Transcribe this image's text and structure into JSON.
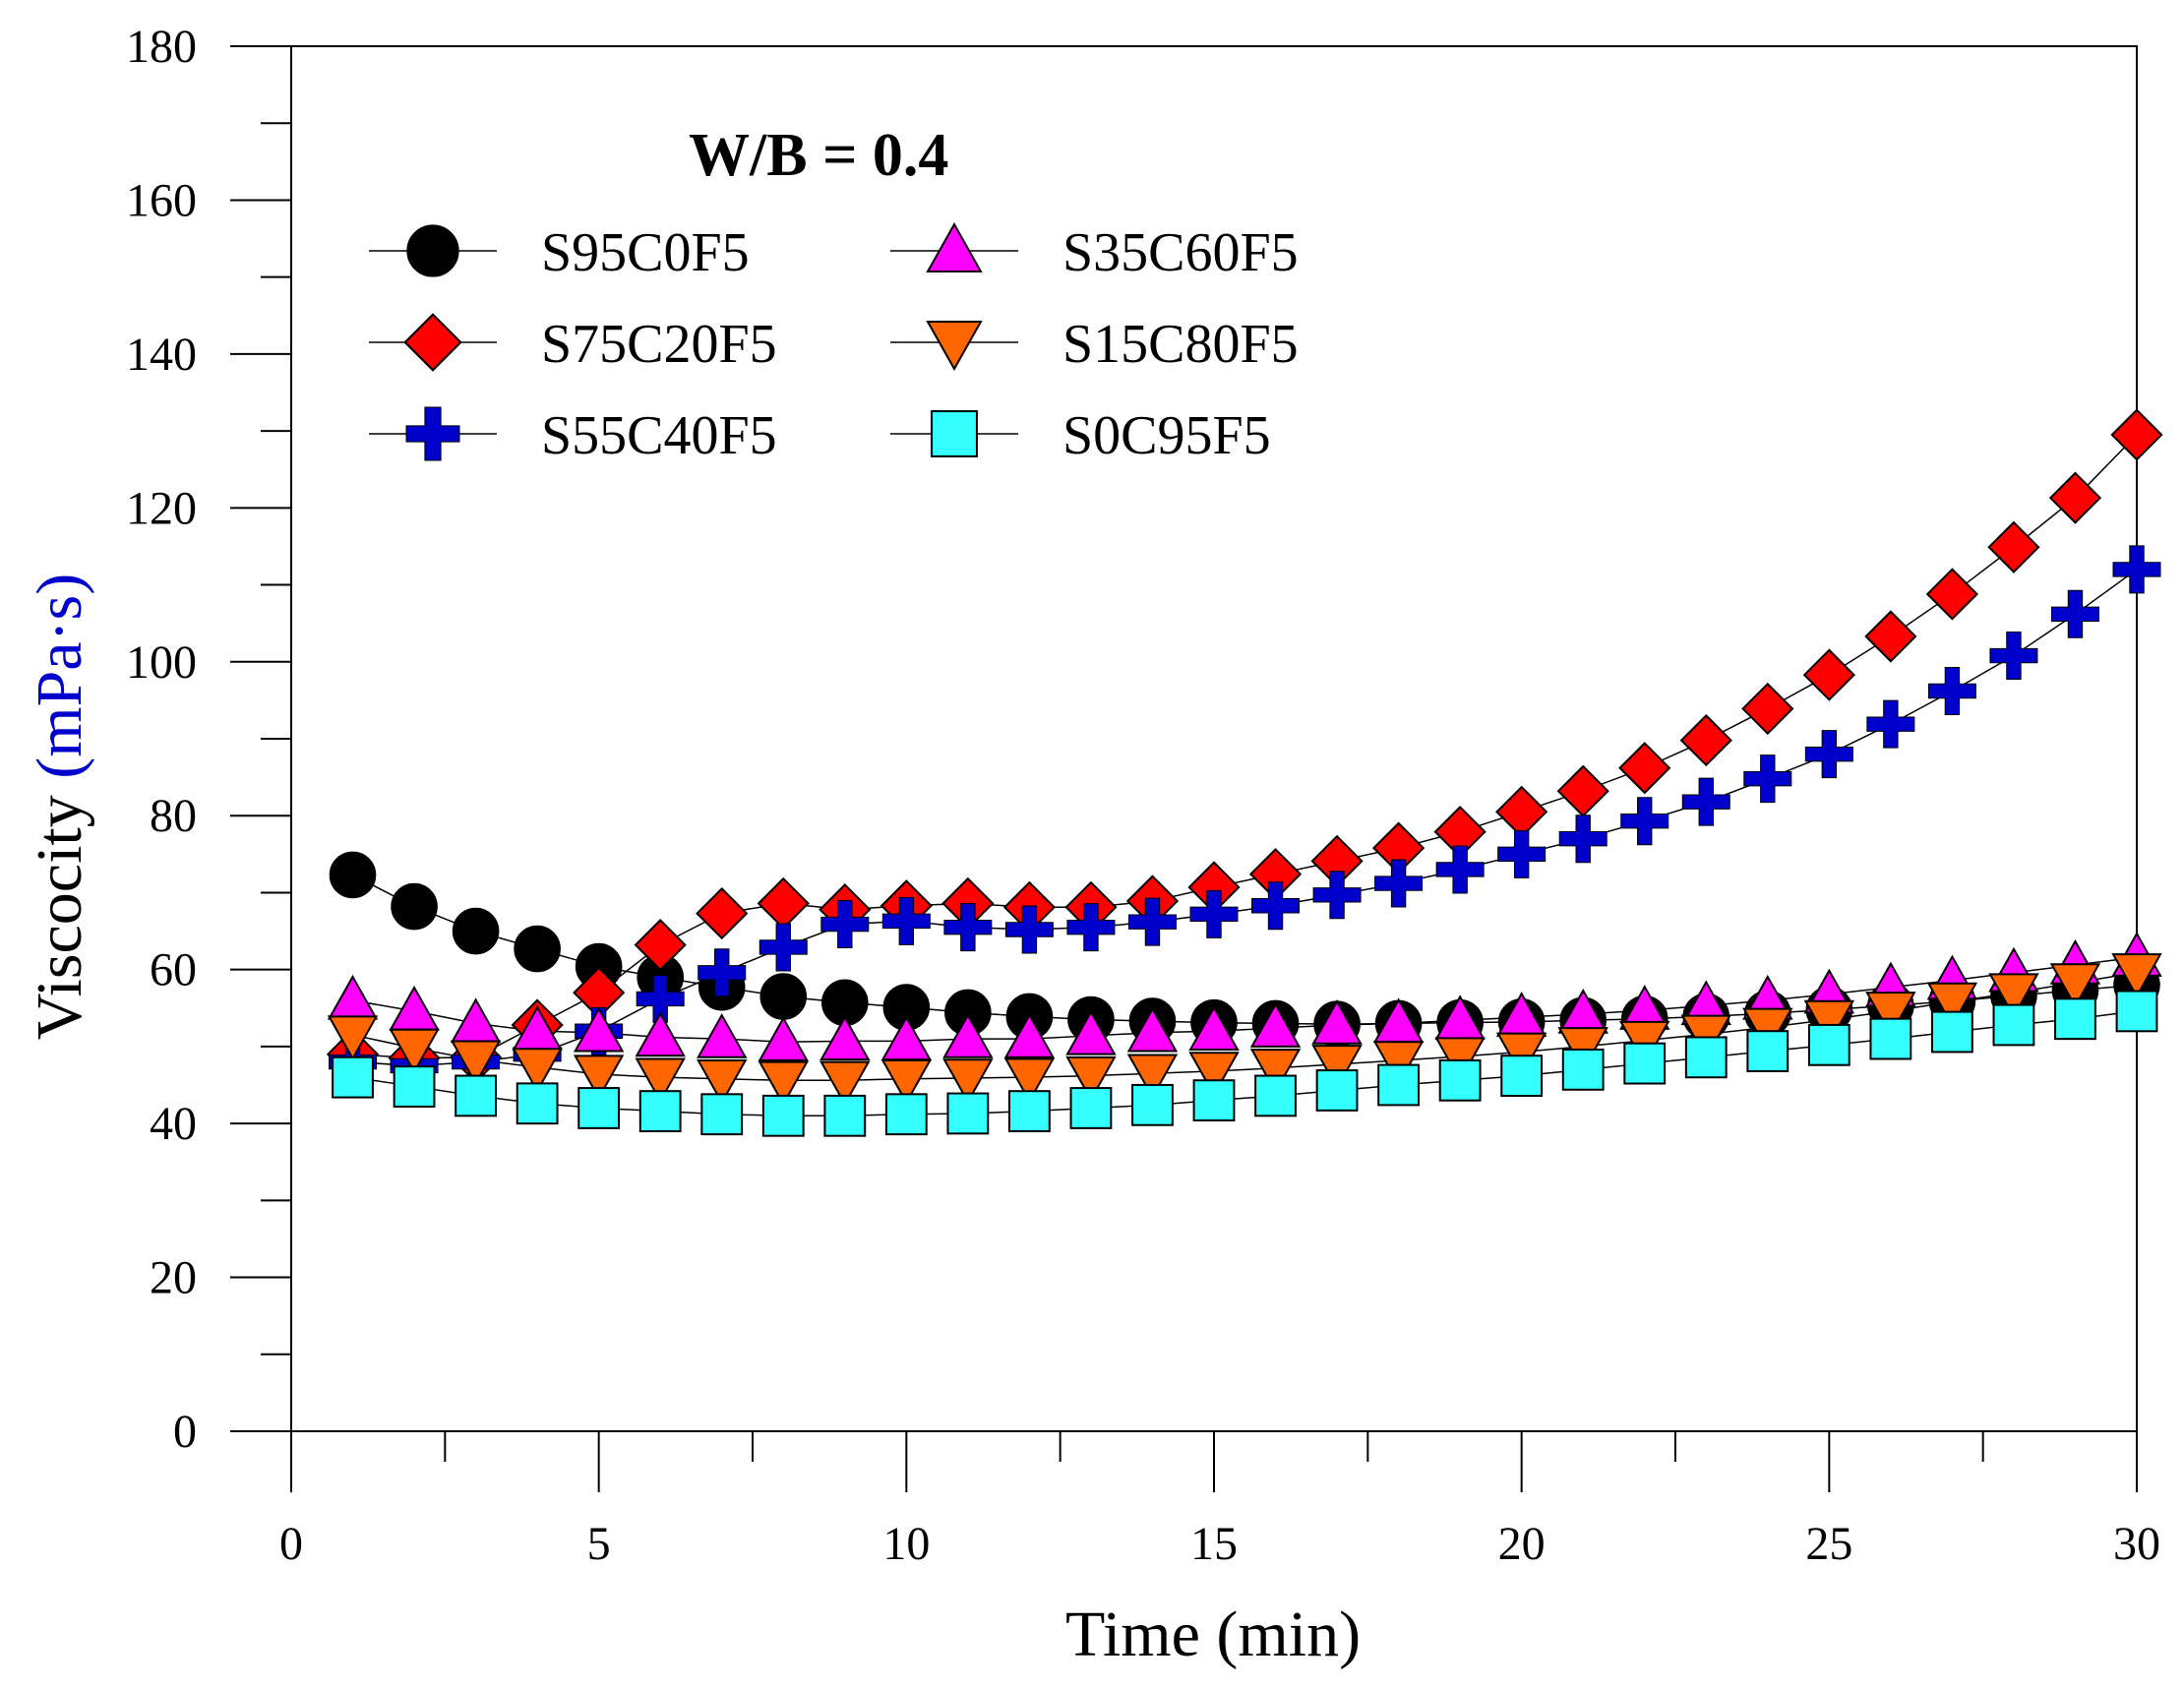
{
  "chart_data": {
    "type": "line",
    "title": "W/B = 0.4",
    "xlabel": "Time (min)",
    "ylabel_prefix": "Viscocity ",
    "ylabel_unit": "(mPa·s)",
    "xlim": [
      0,
      30
    ],
    "ylim": [
      0,
      180
    ],
    "xticks": [
      0,
      5,
      10,
      15,
      20,
      25,
      30
    ],
    "yticks": [
      0,
      20,
      40,
      60,
      80,
      100,
      120,
      140,
      160,
      180
    ],
    "legend_position": "top-left",
    "x": [
      1,
      2,
      3,
      4,
      5,
      6,
      7,
      8,
      9,
      10,
      11,
      12,
      13,
      14,
      15,
      16,
      17,
      18,
      19,
      20,
      21,
      22,
      23,
      24,
      25,
      26,
      27,
      28,
      29,
      30
    ],
    "series": [
      {
        "name": "S95C0F5",
        "marker": "circle",
        "color": "#000000",
        "values": [
          72.3,
          68.2,
          65.0,
          62.7,
          60.4,
          59.0,
          57.7,
          56.5,
          55.7,
          55.1,
          54.4,
          53.9,
          53.5,
          53.3,
          53.1,
          53.0,
          52.9,
          53.0,
          53.1,
          53.2,
          53.4,
          53.6,
          53.9,
          54.3,
          54.8,
          55.3,
          55.9,
          56.6,
          57.3,
          58.0
        ]
      },
      {
        "name": "S75C20F5",
        "marker": "diamond",
        "color": "#ff0000",
        "values": [
          49.0,
          48.5,
          48.6,
          52.8,
          57.0,
          63.2,
          67.3,
          68.6,
          67.8,
          68.3,
          68.6,
          68.1,
          68.1,
          68.9,
          70.7,
          72.4,
          74.1,
          75.8,
          77.9,
          80.5,
          83.2,
          86.2,
          89.8,
          93.9,
          98.3,
          103.3,
          108.8,
          114.9,
          121.3,
          129.5
        ]
      },
      {
        "name": "S55C40F5",
        "marker": "plus",
        "color": "#0000cc",
        "values": [
          48.0,
          47.5,
          48.0,
          49.0,
          52.0,
          56.2,
          59.6,
          62.9,
          65.9,
          66.3,
          65.5,
          65.2,
          65.5,
          66.2,
          67.2,
          68.3,
          69.7,
          71.2,
          73.0,
          75.0,
          77.0,
          79.3,
          81.8,
          84.8,
          88.0,
          91.9,
          96.2,
          100.8,
          106.2,
          112.0
        ]
      },
      {
        "name": "S35C60F5",
        "marker": "triangle-up",
        "color": "#ff00ff",
        "values": [
          56.0,
          54.6,
          53.0,
          52.0,
          51.8,
          51.2,
          51.0,
          50.6,
          50.7,
          50.7,
          51.0,
          51.0,
          51.4,
          51.8,
          52.0,
          52.4,
          52.8,
          53.0,
          53.4,
          53.8,
          54.2,
          54.7,
          55.3,
          56.0,
          56.8,
          57.7,
          58.6,
          59.6,
          60.6,
          61.6
        ]
      },
      {
        "name": "S15C80F5",
        "marker": "triangle-down",
        "color": "#ff6600",
        "values": [
          51.5,
          49.8,
          48.3,
          47.3,
          46.4,
          46.0,
          45.8,
          45.6,
          45.6,
          45.8,
          45.9,
          46.0,
          46.2,
          46.5,
          46.8,
          47.2,
          47.7,
          48.2,
          48.7,
          49.3,
          50.0,
          50.8,
          51.6,
          52.5,
          53.5,
          54.6,
          55.8,
          57.0,
          58.3,
          59.6
        ]
      },
      {
        "name": "S0C95F5",
        "marker": "square",
        "color": "#33ffff",
        "values": [
          46.0,
          44.8,
          43.6,
          42.6,
          42.0,
          41.6,
          41.2,
          41.0,
          41.0,
          41.2,
          41.3,
          41.6,
          42.0,
          42.4,
          43.0,
          43.6,
          44.3,
          45.0,
          45.6,
          46.2,
          47.0,
          47.8,
          48.6,
          49.4,
          50.2,
          51.0,
          51.9,
          52.8,
          53.6,
          54.6
        ]
      }
    ]
  }
}
